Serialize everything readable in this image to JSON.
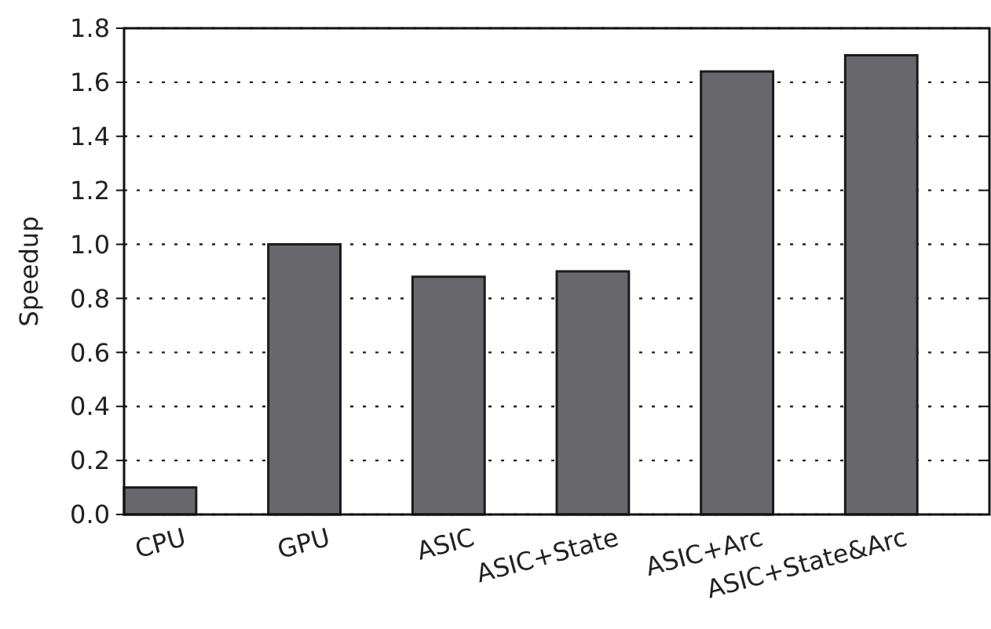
{
  "chart_data": {
    "type": "bar",
    "ylabel": "Speedup",
    "categories": [
      "CPU",
      "GPU",
      "ASIC",
      "ASIC+State",
      "ASIC+Arc",
      "ASIC+State&Arc"
    ],
    "values": [
      0.1,
      1.0,
      0.88,
      0.9,
      1.64,
      1.7
    ],
    "color": "#68686c",
    "ylim": [
      0,
      1.8
    ],
    "yticks": [
      {
        "value": 0,
        "label": "0.0"
      },
      {
        "value": 0.2,
        "label": "0.2"
      },
      {
        "value": 0.4,
        "label": "0.4"
      },
      {
        "value": 0.6,
        "label": "0.6"
      },
      {
        "value": 0.8,
        "label": "0.8"
      },
      {
        "value": 1,
        "label": "1.0"
      },
      {
        "value": 1.2,
        "label": "1.2"
      },
      {
        "value": 1.4,
        "label": "1.4"
      },
      {
        "value": 1.6,
        "label": "1.6"
      },
      {
        "value": 1.8,
        "label": "1.8"
      }
    ],
    "grid": "y",
    "line_style": "dotted"
  }
}
